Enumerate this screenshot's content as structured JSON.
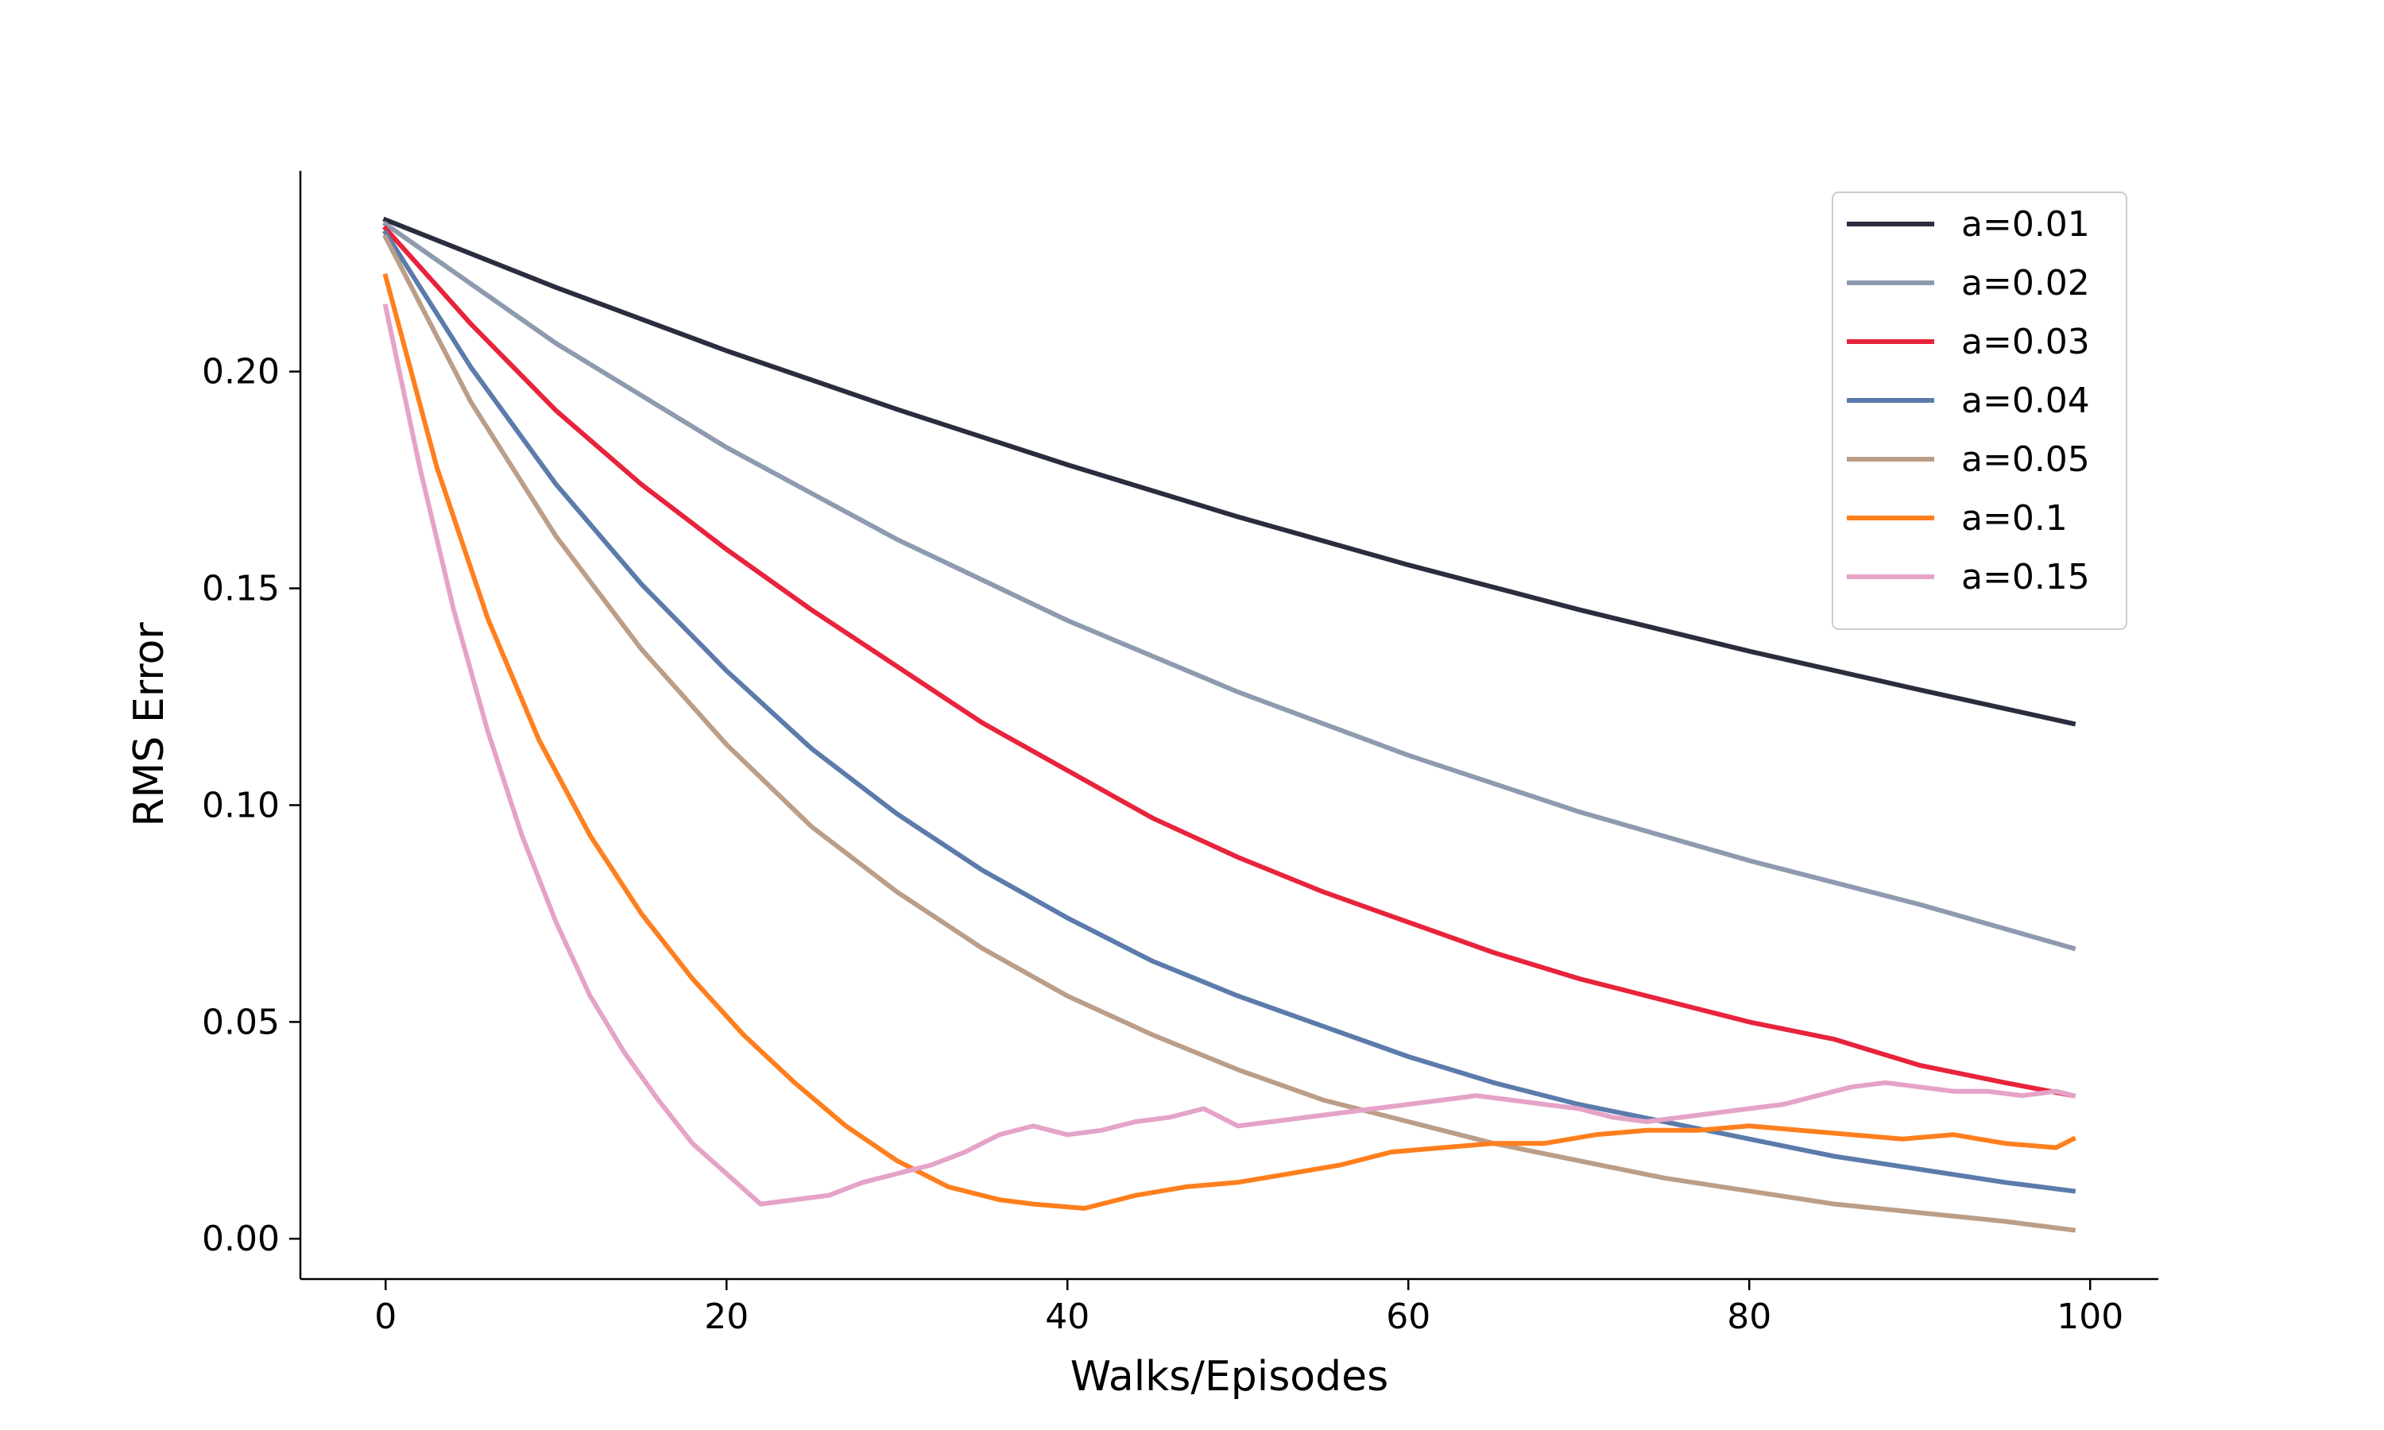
{
  "chart_data": {
    "type": "line",
    "title": "",
    "xlabel": "Walks/Episodes",
    "ylabel": "RMS Error",
    "xlim": [
      -5,
      104
    ],
    "ylim": [
      -0.0093,
      0.2463
    ],
    "xticks": [
      0,
      20,
      40,
      60,
      80,
      100
    ],
    "xtick_labels": [
      "0",
      "20",
      "40",
      "60",
      "80",
      "100"
    ],
    "yticks": [
      0,
      0.05,
      0.1,
      0.15,
      0.2
    ],
    "ytick_labels": [
      "0.00",
      "0.05",
      "0.10",
      "0.15",
      "0.20"
    ],
    "grid": false,
    "legend_position": "top-right",
    "series": [
      {
        "name": "a=0.01",
        "color": "#2a2d3e",
        "x": [
          0,
          10,
          20,
          30,
          40,
          50,
          60,
          70,
          80,
          90,
          99
        ],
        "y": [
          0.235,
          0.2194,
          0.2048,
          0.1913,
          0.1785,
          0.1665,
          0.1554,
          0.1451,
          0.1355,
          0.1266,
          0.1188
        ]
      },
      {
        "name": "a=0.02",
        "color": "#8e9aae",
        "x": [
          0,
          10,
          20,
          30,
          40,
          50,
          60,
          70,
          80,
          90,
          99
        ],
        "y": [
          0.234,
          0.2065,
          0.1825,
          0.1613,
          0.1426,
          0.1261,
          0.1115,
          0.0985,
          0.0872,
          0.0771,
          0.067
        ]
      },
      {
        "name": "a=0.03",
        "color": "#e8233b",
        "x": [
          0,
          5,
          10,
          15,
          20,
          25,
          30,
          35,
          40,
          45,
          50,
          55,
          60,
          65,
          70,
          75,
          80,
          85,
          90,
          95,
          99
        ],
        "y": [
          0.233,
          0.211,
          0.191,
          0.174,
          0.159,
          0.145,
          0.132,
          0.119,
          0.108,
          0.097,
          0.088,
          0.08,
          0.073,
          0.066,
          0.06,
          0.055,
          0.05,
          0.046,
          0.04,
          0.036,
          0.033
        ]
      },
      {
        "name": "a=0.04",
        "color": "#5b7bab",
        "x": [
          0,
          5,
          10,
          15,
          20,
          25,
          30,
          35,
          40,
          45,
          50,
          55,
          60,
          65,
          70,
          75,
          80,
          85,
          90,
          95,
          99
        ],
        "y": [
          0.232,
          0.201,
          0.174,
          0.151,
          0.131,
          0.113,
          0.098,
          0.085,
          0.074,
          0.064,
          0.056,
          0.049,
          0.042,
          0.036,
          0.031,
          0.027,
          0.023,
          0.019,
          0.016,
          0.013,
          0.011
        ]
      },
      {
        "name": "a=0.05",
        "color": "#bb9e88",
        "x": [
          0,
          5,
          10,
          15,
          20,
          25,
          30,
          35,
          40,
          45,
          50,
          55,
          60,
          65,
          70,
          75,
          80,
          85,
          90,
          95,
          99
        ],
        "y": [
          0.231,
          0.193,
          0.162,
          0.136,
          0.114,
          0.095,
          0.08,
          0.067,
          0.056,
          0.047,
          0.039,
          0.032,
          0.027,
          0.022,
          0.018,
          0.014,
          0.011,
          0.008,
          0.006,
          0.004,
          0.002
        ]
      },
      {
        "name": "a=0.1",
        "color": "#ff7f1e",
        "x": [
          0,
          3,
          6,
          9,
          12,
          15,
          18,
          21,
          24,
          27,
          30,
          33,
          36,
          38,
          41,
          44,
          47,
          50,
          53,
          56,
          59,
          62,
          65,
          68,
          71,
          74,
          77,
          80,
          83,
          86,
          89,
          92,
          95,
          98,
          99
        ],
        "y": [
          0.222,
          0.178,
          0.143,
          0.115,
          0.093,
          0.075,
          0.06,
          0.047,
          0.036,
          0.026,
          0.018,
          0.012,
          0.009,
          0.008,
          0.007,
          0.01,
          0.012,
          0.013,
          0.015,
          0.017,
          0.02,
          0.021,
          0.022,
          0.022,
          0.024,
          0.025,
          0.025,
          0.026,
          0.025,
          0.024,
          0.023,
          0.024,
          0.022,
          0.021,
          0.023
        ]
      },
      {
        "name": "a=0.15",
        "color": "#e5a3c8",
        "x": [
          0,
          2,
          4,
          6,
          8,
          10,
          12,
          14,
          16,
          18,
          20,
          22,
          24,
          26,
          28,
          30,
          32,
          34,
          36,
          38,
          40,
          42,
          44,
          46,
          48,
          50,
          52,
          54,
          56,
          58,
          60,
          62,
          64,
          66,
          68,
          70,
          72,
          74,
          76,
          78,
          80,
          82,
          84,
          86,
          88,
          90,
          92,
          94,
          96,
          98,
          99
        ],
        "y": [
          0.215,
          0.178,
          0.145,
          0.117,
          0.093,
          0.073,
          0.056,
          0.043,
          0.032,
          0.022,
          0.015,
          0.008,
          0.009,
          0.01,
          0.013,
          0.015,
          0.017,
          0.02,
          0.024,
          0.026,
          0.024,
          0.025,
          0.027,
          0.028,
          0.03,
          0.026,
          0.027,
          0.028,
          0.029,
          0.03,
          0.031,
          0.032,
          0.033,
          0.032,
          0.031,
          0.03,
          0.028,
          0.027,
          0.028,
          0.029,
          0.03,
          0.031,
          0.033,
          0.035,
          0.036,
          0.035,
          0.034,
          0.034,
          0.033,
          0.034,
          0.033
        ]
      }
    ]
  }
}
